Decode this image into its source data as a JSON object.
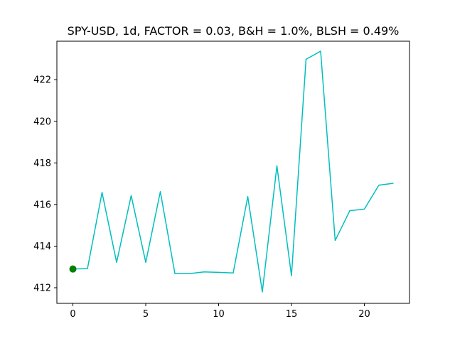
{
  "chart_data": {
    "type": "line",
    "title": "SPY-USD, 1d, FACTOR = 0.03, B&H = 1.0%, BLSH = 0.49%",
    "xlabel": "",
    "ylabel": "",
    "xlim": [
      -1.1,
      23.1
    ],
    "ylim": [
      411.25,
      423.85
    ],
    "xticks": [
      0,
      5,
      10,
      15,
      20
    ],
    "yticks": [
      412,
      414,
      416,
      418,
      420,
      422
    ],
    "grid": false,
    "series": [
      {
        "color": "#00bfbf",
        "x": [
          0,
          1,
          2,
          3,
          4,
          5,
          6,
          7,
          8,
          9,
          10,
          11,
          12,
          13,
          14,
          15,
          16,
          17,
          18,
          19,
          20,
          21,
          22
        ],
        "y": [
          412.9,
          412.92,
          416.58,
          413.22,
          416.43,
          413.22,
          416.62,
          412.68,
          412.68,
          412.76,
          412.74,
          412.71,
          416.38,
          411.8,
          417.86,
          412.58,
          422.98,
          423.37,
          414.27,
          415.7,
          415.78,
          416.93,
          417.02
        ]
      }
    ],
    "markers": [
      {
        "x": 0,
        "y": 412.9,
        "color": "#008000"
      }
    ]
  }
}
